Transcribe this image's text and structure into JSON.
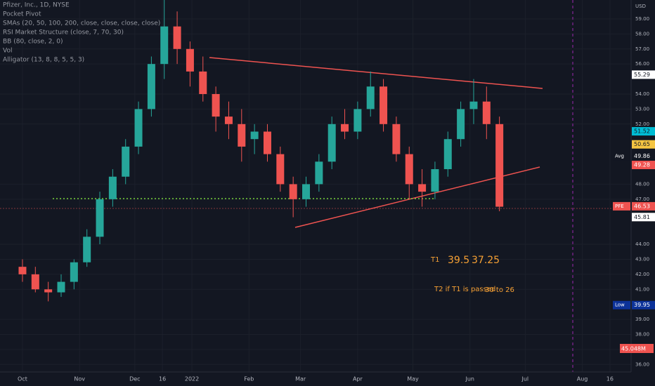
{
  "chart_data": {
    "type": "candlestick",
    "legend_lines": [
      "Pfizer, Inc., 1D, NYSE",
      "Pocket Pivot",
      "SMAs (20, 50, 100, 200, close, close, close, close)",
      "RSI Market Structure (close, 7, 70, 30)",
      "BB (80, close, 2, 0)",
      "Vol",
      "Alligator (13, 8, 8, 5, 5, 3)"
    ],
    "currency": "USD",
    "up_color": "#26a69a",
    "down_color": "#ef5350",
    "grid": true,
    "x": [
      0,
      7,
      14,
      21,
      28,
      35,
      42,
      49,
      56,
      63,
      70,
      77,
      84,
      91,
      98,
      105,
      112,
      119,
      126,
      133,
      140,
      147,
      154,
      161,
      168,
      175,
      182,
      189,
      196,
      203,
      210,
      217,
      224,
      231,
      238,
      245,
      252,
      259
    ],
    "open": [
      42.5,
      42,
      41,
      40.8,
      41.5,
      42.8,
      44.5,
      47,
      48.5,
      50.5,
      53,
      56,
      58.5,
      57,
      55.5,
      54,
      52.5,
      52,
      51,
      51.5,
      50,
      48,
      47,
      48,
      49.5,
      52,
      51.5,
      53,
      54.5,
      52,
      50,
      48,
      47.5,
      49,
      51,
      53,
      53.5,
      52
    ],
    "high": [
      43,
      42.5,
      41.5,
      42,
      43,
      45,
      47.5,
      49,
      51,
      53.5,
      56.5,
      60.5,
      59.5,
      57.5,
      56.5,
      54.5,
      53.5,
      53,
      52,
      52,
      50.5,
      48.5,
      48.5,
      50,
      52.5,
      53,
      53.5,
      55.5,
      55,
      52.5,
      50.5,
      49,
      49.5,
      51.5,
      53.5,
      55,
      54.5,
      52.5
    ],
    "low": [
      41.5,
      40.8,
      40.2,
      40.5,
      41,
      42.5,
      44,
      46.5,
      48,
      50,
      52.5,
      55,
      56,
      54.5,
      53.5,
      51.5,
      51,
      49.5,
      50,
      49.5,
      47.5,
      45.8,
      46.5,
      47.5,
      49,
      51,
      51,
      52.5,
      51.5,
      49.5,
      47,
      46.5,
      47,
      48.5,
      50.5,
      52,
      51,
      46.2
    ],
    "close": [
      42,
      41,
      40.8,
      41.5,
      42.8,
      44.5,
      47,
      48.5,
      50.5,
      53,
      56,
      58.5,
      57,
      55.5,
      54,
      52.5,
      52,
      50.5,
      51.5,
      50,
      48,
      47,
      48,
      49.5,
      52,
      51.5,
      53,
      54.5,
      52,
      50,
      48,
      47.5,
      49,
      51,
      53,
      53.5,
      52,
      46.5
    ],
    "xlim": [
      -12.2,
      330.5
    ],
    "xticks": [
      {
        "value": 0,
        "label": "Oct"
      },
      {
        "value": 31,
        "label": "Nov"
      },
      {
        "value": 61,
        "label": "Dec"
      },
      {
        "value": 76,
        "label": "16"
      },
      {
        "value": 92,
        "label": "2022"
      },
      {
        "value": 123,
        "label": "Feb"
      },
      {
        "value": 151,
        "label": "Mar"
      },
      {
        "value": 182,
        "label": "Apr"
      },
      {
        "value": 212,
        "label": "May"
      },
      {
        "value": 243,
        "label": "Jun"
      },
      {
        "value": 273,
        "label": "Jul"
      },
      {
        "value": 304,
        "label": "Aug"
      },
      {
        "value": 319,
        "label": "16"
      }
    ],
    "ylim": [
      35.5,
      60.26
    ],
    "yticks": [
      {
        "value": 36,
        "label": "36.00"
      },
      {
        "value": 37,
        "label": "37.00"
      },
      {
        "value": 38,
        "label": "38.00"
      },
      {
        "value": 39,
        "label": "39.00"
      },
      {
        "value": 41,
        "label": "41.00"
      },
      {
        "value": 42,
        "label": "42.00"
      },
      {
        "value": 43,
        "label": "43.00"
      },
      {
        "value": 44,
        "label": "44.00"
      },
      {
        "value": 47,
        "label": "47.00"
      },
      {
        "value": 48,
        "label": "48.00"
      },
      {
        "value": 52,
        "label": "52.00"
      },
      {
        "value": 53,
        "label": "53.00"
      },
      {
        "value": 54,
        "label": "54.00"
      },
      {
        "value": 56,
        "label": "56.00"
      },
      {
        "value": 57,
        "label": "57.00"
      },
      {
        "value": 58,
        "label": "58.00"
      },
      {
        "value": 59,
        "label": "59.00"
      }
    ],
    "price_labels": [
      {
        "value": 55.29,
        "color": "#ffffff",
        "text_color": "#131722"
      },
      {
        "value": 51.52,
        "color": "#00bcd4",
        "text_color": "#131722"
      },
      {
        "value": 50.65,
        "color": "#f5c542",
        "text_color": "#131722"
      },
      {
        "name": "Avg",
        "value": 49.86,
        "color": "#131722",
        "text_color": "#ffffff"
      },
      {
        "value": 49.28,
        "color": "#ef5350",
        "text_color": "#ffffff"
      },
      {
        "name": "PFE",
        "value": 46.53,
        "color": "#ef5350",
        "text_color": "#ffffff"
      },
      {
        "value": 45.81,
        "color": "#ffffff",
        "text_color": "#131722"
      },
      {
        "name": "Low",
        "value": 39.95,
        "color": "#0c3299",
        "text_color": "#ffffff"
      }
    ],
    "volume_label": "45.048M",
    "annotations": [
      "T1",
      "39.5",
      "37.25",
      "T2 if T1 is passed",
      "30 to 26"
    ]
  }
}
